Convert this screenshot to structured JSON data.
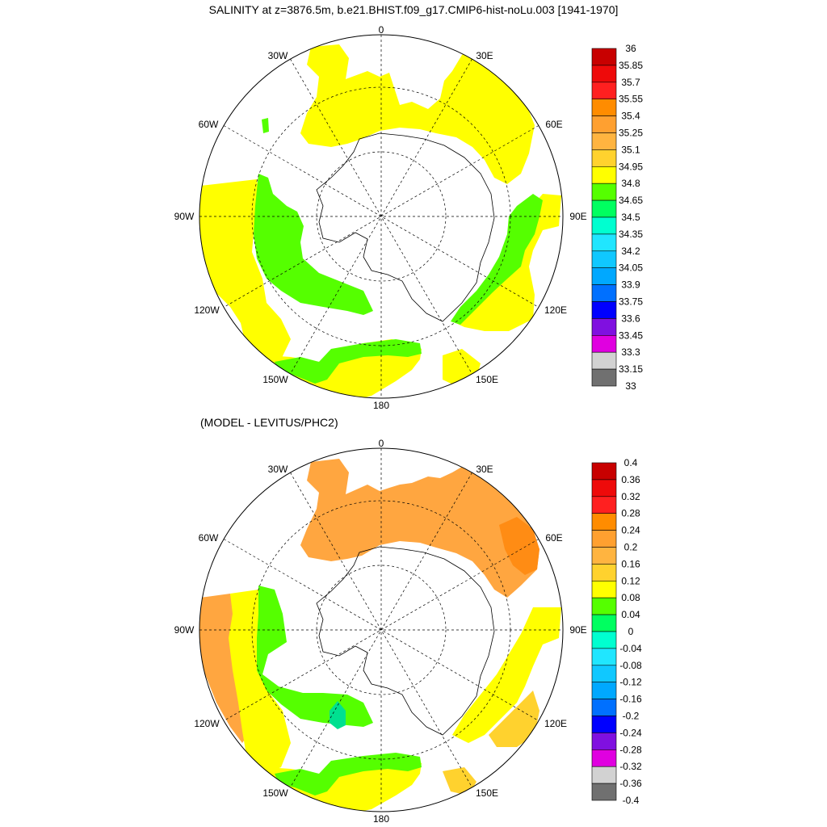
{
  "title": "SALINITY at z=3876.5m, b.e21.BHIST.f09_g17.CMIP6-hist-noLu.003 [1941-1970]",
  "subtitle": "(MODEL - LEVITUS/PHC2)",
  "longitude_labels": [
    "0",
    "30E",
    "60E",
    "90E",
    "120E",
    "150E",
    "180",
    "150W",
    "120W",
    "90W",
    "60W",
    "30W"
  ],
  "colors": {
    "land": "#ffffff",
    "grid": "#000000",
    "yellow": "#ffff00",
    "green": "#55ff00",
    "light_orange": "#ffa640",
    "orange": "#ff8c14",
    "gold": "#ffd22e",
    "teal": "#00e090"
  },
  "top_colorbar": {
    "labels": [
      "36",
      "35.85",
      "35.7",
      "35.55",
      "35.4",
      "35.25",
      "35.1",
      "34.95",
      "34.8",
      "34.65",
      "34.5",
      "34.35",
      "34.2",
      "34.05",
      "33.9",
      "33.75",
      "33.6",
      "33.45",
      "33.3",
      "33.15",
      "33"
    ],
    "colors": [
      "#c80000",
      "#ee0a0a",
      "#ff2020",
      "#ff8c00",
      "#ffa030",
      "#ffb440",
      "#ffd22e",
      "#ffff00",
      "#55ff00",
      "#00ff60",
      "#00ffd0",
      "#20e6ff",
      "#10c8ff",
      "#00a8ff",
      "#0070ff",
      "#0000ff",
      "#8010e0",
      "#e000e0",
      "#d2d2d2",
      "#707070"
    ]
  },
  "bottom_colorbar": {
    "labels": [
      "0.4",
      "0.36",
      "0.32",
      "0.28",
      "0.24",
      "0.2",
      "0.16",
      "0.12",
      "0.08",
      "0.04",
      "0",
      "-0.04",
      "-0.08",
      "-0.12",
      "-0.16",
      "-0.2",
      "-0.24",
      "-0.28",
      "-0.32",
      "-0.36",
      "-0.4"
    ],
    "colors": [
      "#c80000",
      "#ee0a0a",
      "#ff2020",
      "#ff8c00",
      "#ffa030",
      "#ffb440",
      "#ffd22e",
      "#ffff00",
      "#55ff00",
      "#00ff60",
      "#00ffd0",
      "#20e6ff",
      "#10c8ff",
      "#00a8ff",
      "#0070ff",
      "#0000ff",
      "#8010e0",
      "#e000e0",
      "#d2d2d2",
      "#707070"
    ]
  }
}
